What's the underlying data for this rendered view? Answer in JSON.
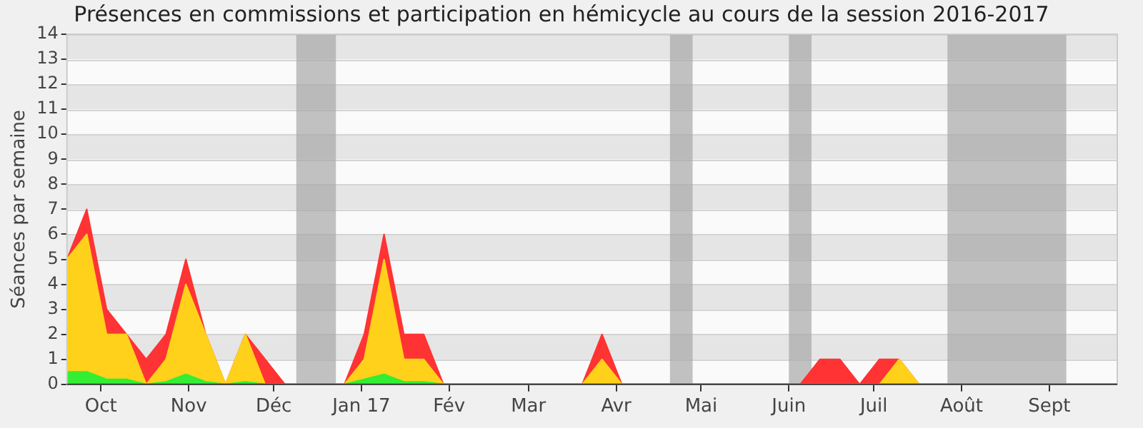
{
  "chart_data": {
    "type": "area",
    "title": "Présences en commissions et participation en hémicycle au cours de la session 2016-2017",
    "ylabel": "Séances par semaine",
    "stacked": true,
    "x": [
      "2016-09-19",
      "2016-09-26",
      "2016-10-03",
      "2016-10-10",
      "2016-10-17",
      "2016-10-24",
      "2016-10-31",
      "2016-11-07",
      "2016-11-14",
      "2016-11-21",
      "2016-11-28",
      "2016-12-05",
      "2016-12-12",
      "2016-12-19",
      "2016-12-26",
      "2017-01-02",
      "2017-01-09",
      "2017-01-16",
      "2017-01-23",
      "2017-01-30",
      "2017-02-06",
      "2017-02-13",
      "2017-02-20",
      "2017-02-27",
      "2017-03-06",
      "2017-03-13",
      "2017-03-20",
      "2017-03-27",
      "2017-04-03",
      "2017-04-10",
      "2017-04-17",
      "2017-04-24",
      "2017-05-01",
      "2017-05-08",
      "2017-05-15",
      "2017-05-22",
      "2017-05-29",
      "2017-06-05",
      "2017-06-12",
      "2017-06-19",
      "2017-06-26",
      "2017-07-03",
      "2017-07-10",
      "2017-07-17",
      "2017-07-24",
      "2017-07-31",
      "2017-08-07",
      "2017-08-14",
      "2017-08-21",
      "2017-08-28",
      "2017-09-04",
      "2017-09-11",
      "2017-09-18",
      "2017-09-25"
    ],
    "series": [
      {
        "color": "#33ee33",
        "values": [
          0.5,
          0.5,
          0.2,
          0.2,
          0,
          0.1,
          0.4,
          0.1,
          0,
          0.1,
          0,
          0,
          0,
          0,
          0,
          0.2,
          0.4,
          0.1,
          0.1,
          0,
          0,
          0,
          0,
          0,
          0,
          0,
          0,
          0,
          0,
          0,
          0,
          0,
          0,
          0,
          0,
          0,
          0,
          0,
          0,
          0,
          0,
          0,
          0,
          0,
          0,
          0,
          0,
          0,
          0,
          0,
          0,
          0,
          0,
          0
        ]
      },
      {
        "color": "#ffd11a",
        "values": [
          4.5,
          5.5,
          1.8,
          1.8,
          0,
          0.9,
          3.6,
          1.9,
          0,
          1.9,
          0,
          0,
          0,
          0,
          0,
          0.8,
          4.6,
          0.9,
          0.9,
          0,
          0,
          0,
          0,
          0,
          0,
          0,
          0,
          1,
          0,
          0,
          0,
          0,
          0,
          0,
          0,
          0,
          0,
          0,
          0,
          0,
          0,
          0,
          1,
          0,
          0,
          0,
          0,
          0,
          0,
          0,
          0,
          0,
          0,
          0
        ]
      },
      {
        "color": "#ff3333",
        "values": [
          0,
          1,
          1,
          0,
          1,
          1,
          1,
          0,
          0,
          0,
          1,
          0,
          0,
          0,
          0,
          1,
          1,
          1,
          1,
          0,
          0,
          0,
          0,
          0,
          0,
          0,
          0,
          1,
          0,
          0,
          0,
          0,
          0,
          0,
          0,
          0,
          0,
          0,
          1,
          1,
          0,
          1,
          0,
          0,
          0,
          0,
          0,
          0,
          0,
          0,
          0,
          0,
          0,
          0
        ]
      }
    ],
    "xlim": [
      "2016-09-19",
      "2017-09-25"
    ],
    "xticks": [
      {
        "value": "2016-10-01",
        "label": "Oct"
      },
      {
        "value": "2016-11-01",
        "label": "Nov"
      },
      {
        "value": "2016-12-01",
        "label": "Déc"
      },
      {
        "value": "2017-01-01",
        "label": "Jan 17"
      },
      {
        "value": "2017-02-01",
        "label": "Fév"
      },
      {
        "value": "2017-03-01",
        "label": "Mar"
      },
      {
        "value": "2017-04-01",
        "label": "Avr"
      },
      {
        "value": "2017-05-01",
        "label": "Mai"
      },
      {
        "value": "2017-06-01",
        "label": "Juin"
      },
      {
        "value": "2017-07-01",
        "label": "Juil"
      },
      {
        "value": "2017-08-01",
        "label": "Août"
      },
      {
        "value": "2017-09-01",
        "label": "Sept"
      }
    ],
    "ylim": [
      0,
      14
    ],
    "yticks": [
      0,
      1,
      2,
      3,
      4,
      5,
      6,
      7,
      8,
      9,
      10,
      11,
      12,
      13,
      14
    ],
    "grid": "y",
    "bands": [
      {
        "axis": "x",
        "from": "2016-12-09",
        "to": "2016-12-23",
        "color": "#a8a8a8"
      },
      {
        "axis": "x",
        "from": "2017-04-20",
        "to": "2017-04-28",
        "color": "#a8a8a8"
      },
      {
        "axis": "x",
        "from": "2017-06-01",
        "to": "2017-06-09",
        "color": "#a8a8a8"
      },
      {
        "axis": "x",
        "from": "2017-07-27",
        "to": "2017-09-07",
        "color": "#a8a8a8"
      }
    ]
  }
}
